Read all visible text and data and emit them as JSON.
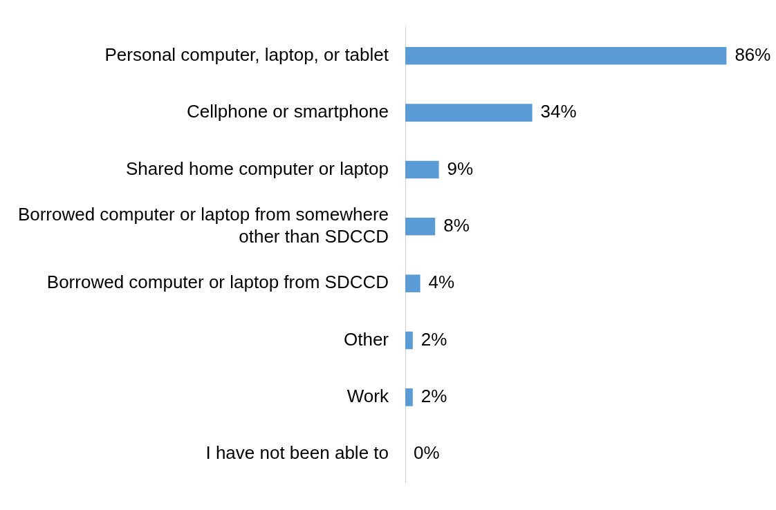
{
  "chart_data": {
    "type": "bar",
    "orientation": "horizontal",
    "categories": [
      "Personal computer, laptop, or tablet",
      "Cellphone or smartphone",
      "Shared home computer or laptop",
      "Borrowed computer or laptop from somewhere other than SDCCD",
      "Borrowed computer or laptop from SDCCD",
      "Other",
      "Work",
      "I have not been able to"
    ],
    "values": [
      86,
      34,
      9,
      8,
      4,
      2,
      2,
      0
    ],
    "value_labels": [
      "86%",
      "34%",
      "9%",
      "8%",
      "4%",
      "2%",
      "2%",
      "0%"
    ],
    "color": "#5b9bd5",
    "grid": false,
    "legend": false,
    "tick_labels": "y"
  }
}
